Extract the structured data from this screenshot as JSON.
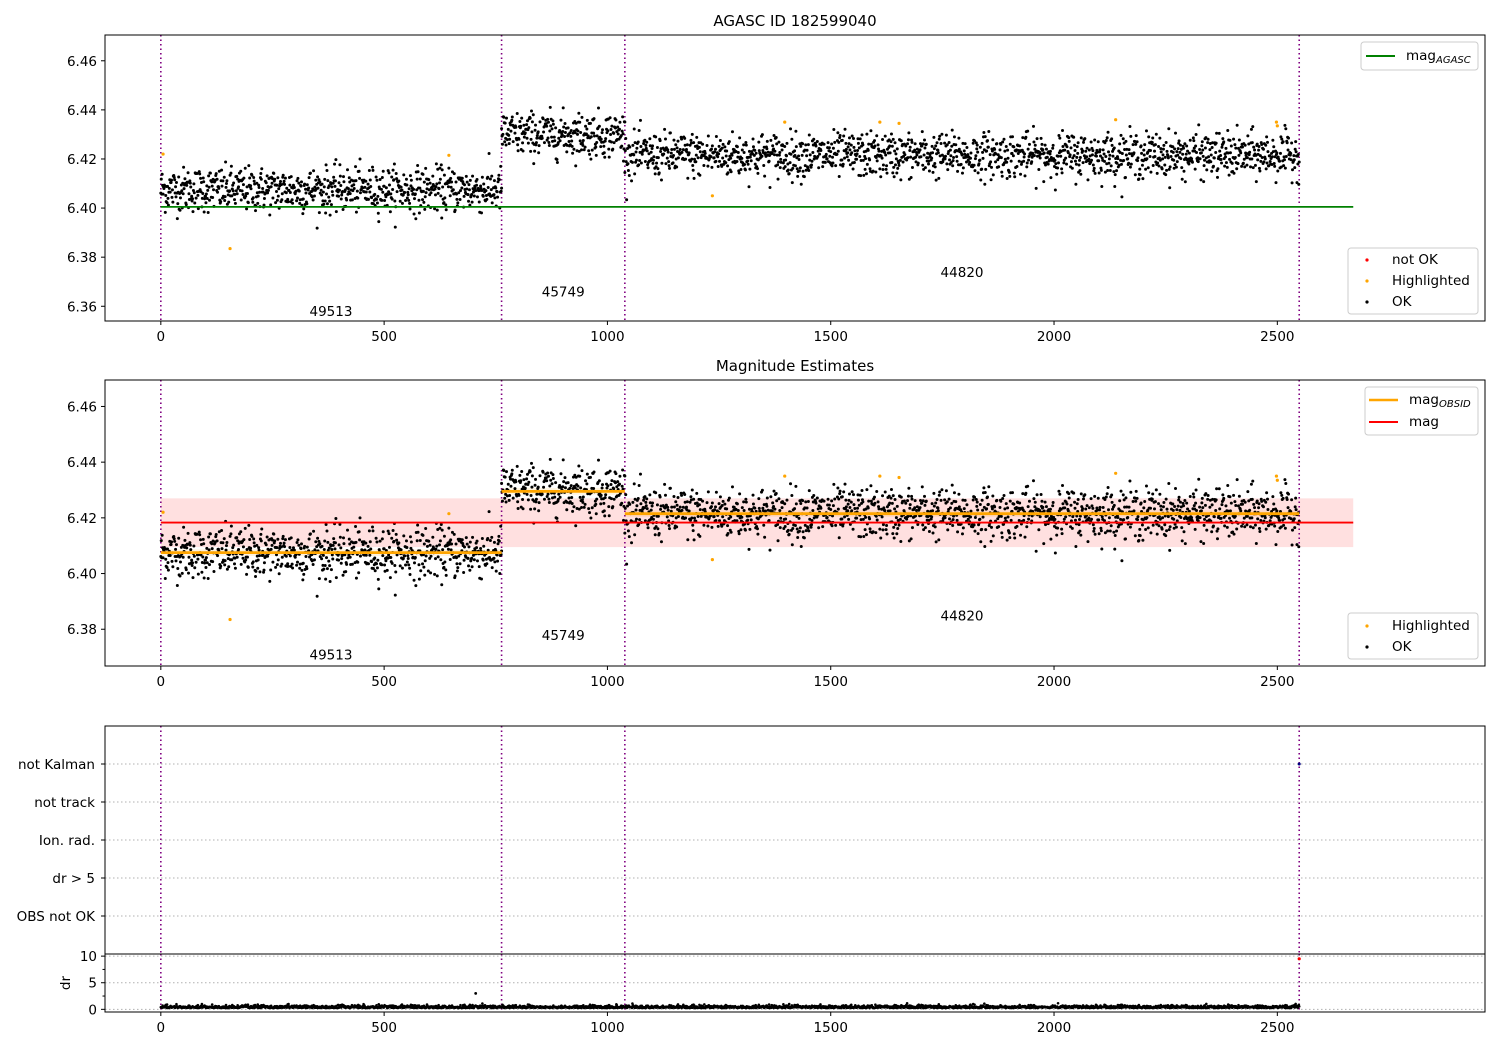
{
  "chart_data": [
    {
      "panel": "top",
      "type": "scatter",
      "title": "AGASC ID 182599040",
      "xlim": [
        -125,
        2965
      ],
      "ylim": [
        6.354,
        6.4705
      ],
      "xticks": [
        0,
        500,
        1000,
        1500,
        2000,
        2500
      ],
      "yticks": [
        6.36,
        6.38,
        6.4,
        6.42,
        6.44,
        6.46
      ],
      "grid": false,
      "obsid_boundaries": [
        0,
        763,
        1039,
        2549
      ],
      "obsid_labels": [
        {
          "text": "49513",
          "x": 381,
          "y": 6.358
        },
        {
          "text": "45749",
          "x": 901,
          "y": 6.366
        },
        {
          "text": "44820",
          "x": 1794,
          "y": 6.374
        }
      ],
      "segments": [
        {
          "start": 0,
          "end": 763,
          "mean": 6.4075
        },
        {
          "start": 763,
          "end": 1039,
          "mean": 6.43
        },
        {
          "start": 1039,
          "end": 2549,
          "mean": 6.4215
        }
      ],
      "scatter_spread": 0.0045,
      "lines": [
        {
          "name": "mag_AGASC",
          "legend_main": "mag",
          "legend_sub": "AGASC",
          "value": 6.4005,
          "x_range": [
            0,
            2670
          ],
          "color": "#008000"
        }
      ],
      "series": [
        {
          "name": "not OK",
          "color": "#ff0000",
          "points": []
        },
        {
          "name": "Highlighted",
          "color": "#ffa500",
          "points": [
            [
              5,
              6.422
            ],
            [
              155,
              6.3835
            ],
            [
              645,
              6.4215
            ],
            [
              1235,
              6.405
            ],
            [
              1397,
              6.435
            ],
            [
              1610,
              6.435
            ],
            [
              1653,
              6.4345
            ],
            [
              2138,
              6.436
            ],
            [
              2498,
              6.435
            ],
            [
              2500,
              6.4335
            ]
          ]
        },
        {
          "name": "OK",
          "color": "#000000",
          "points": "per-observation magnitudes, one per x index 0-2549 (dense)"
        }
      ],
      "legends": [
        {
          "placement": "upper-right",
          "items": [
            "mag_AGASC"
          ]
        },
        {
          "placement": "lower-right",
          "items": [
            "not OK",
            "Highlighted",
            "OK"
          ]
        }
      ]
    },
    {
      "panel": "middle",
      "type": "scatter",
      "title": "Magnitude Estimates",
      "xlim": [
        -125,
        2965
      ],
      "ylim": [
        6.3668,
        6.4695
      ],
      "xticks": [
        0,
        500,
        1000,
        1500,
        2000,
        2500
      ],
      "yticks": [
        6.38,
        6.4,
        6.42,
        6.44,
        6.46
      ],
      "grid": false,
      "obsid_boundaries": [
        0,
        763,
        1039,
        2549
      ],
      "obsid_labels": [
        {
          "text": "49513",
          "x": 381,
          "y": 6.371
        },
        {
          "text": "45749",
          "x": 901,
          "y": 6.378
        },
        {
          "text": "44820",
          "x": 1794,
          "y": 6.385
        }
      ],
      "lines": [
        {
          "name": "mag_OBSID",
          "legend_main": "mag",
          "legend_sub": "OBSID",
          "color": "#ffa500",
          "segments": [
            [
              0,
              763,
              6.4075
            ],
            [
              763,
              1039,
              6.4295
            ],
            [
              1039,
              2549,
              6.4215
            ]
          ]
        },
        {
          "name": "mag",
          "legend_main": "mag",
          "legend_sub": "",
          "color": "#ff0000",
          "value": 6.4183,
          "band": [
            6.4095,
            6.427
          ],
          "x_range": [
            0,
            2670
          ]
        }
      ],
      "series": [
        {
          "name": "Highlighted",
          "color": "#ffa500",
          "points": [
            [
              5,
              6.422
            ],
            [
              155,
              6.3835
            ],
            [
              645,
              6.4215
            ],
            [
              1235,
              6.405
            ],
            [
              1397,
              6.435
            ],
            [
              1610,
              6.435
            ],
            [
              1653,
              6.4345
            ],
            [
              2138,
              6.436
            ],
            [
              2498,
              6.435
            ],
            [
              2500,
              6.4335
            ]
          ]
        },
        {
          "name": "OK",
          "color": "#000000",
          "points": "same per-observation magnitudes as top panel"
        }
      ],
      "legends": [
        {
          "placement": "upper-right",
          "items": [
            "mag_OBSID",
            "mag"
          ]
        },
        {
          "placement": "lower-right",
          "items": [
            "Highlighted",
            "OK"
          ]
        }
      ]
    },
    {
      "panel": "flags",
      "type": "scatter",
      "xlim": [
        -125,
        2965
      ],
      "categories": [
        "not Kalman",
        "not track",
        "Ion. rad.",
        "dr > 5",
        "OBS not OK"
      ],
      "grid": "dotted horizontal at each category",
      "obsid_boundaries": [
        0,
        763,
        1039,
        2549
      ],
      "series": [
        {
          "name": "not Kalman",
          "color": "#000080",
          "points": [
            [
              2549,
              "not Kalman"
            ]
          ]
        }
      ]
    },
    {
      "panel": "dr",
      "type": "scatter",
      "xlim": [
        -125,
        2965
      ],
      "ylim": [
        -0.5,
        10.4
      ],
      "ylabel": "dr",
      "xticks": [
        0,
        500,
        1000,
        1500,
        2000,
        2500
      ],
      "yticks": [
        0,
        5,
        10
      ],
      "grid": "dotted horizontal",
      "obsid_boundaries": [
        0,
        763,
        1039,
        2549
      ],
      "series": [
        {
          "name": "dr",
          "color": "#000000",
          "baseline": 0.25,
          "points": [
            [
              705,
              3.0
            ]
          ]
        },
        {
          "name": "dr (not OK)",
          "color": "#ff0000",
          "points": [
            [
              2549,
              9.5
            ]
          ]
        }
      ]
    }
  ]
}
